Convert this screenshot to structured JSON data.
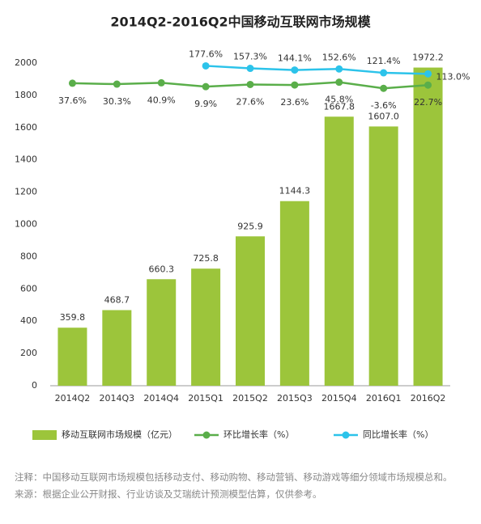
{
  "chart_data": {
    "type": "bar",
    "title": "2014Q2-2016Q2中国移动互联网市场规模",
    "categories": [
      "2014Q2",
      "2014Q3",
      "2014Q4",
      "2015Q1",
      "2015Q2",
      "2015Q3",
      "2015Q4",
      "2016Q1",
      "2016Q2"
    ],
    "ylim": [
      0,
      2000
    ],
    "yticks": [
      0,
      200,
      400,
      600,
      800,
      1000,
      1200,
      1400,
      1600,
      1800,
      2000
    ],
    "y2lim": [
      -2400,
      200
    ],
    "legend": "bottom",
    "series": [
      {
        "name": "移动互联网市场规模（亿元）",
        "type": "bar",
        "color": "#9cc53b",
        "values": [
          359.8,
          468.7,
          660.3,
          725.8,
          925.9,
          1144.3,
          1667.8,
          1607.0,
          1972.2
        ],
        "value_labels": [
          "359.8",
          "468.7",
          "660.3",
          "725.8",
          "925.9",
          "1144.3",
          "1667.8",
          "1607.0",
          "1972.2"
        ]
      },
      {
        "name": "环比增长率（%）",
        "type": "line",
        "axis": "y2",
        "color": "#5aae4a",
        "values": [
          37.6,
          30.3,
          40.9,
          9.9,
          27.6,
          23.6,
          45.8,
          -3.6,
          22.7
        ],
        "value_labels": [
          "37.6%",
          "30.3%",
          "40.9%",
          "9.9%",
          "27.6%",
          "23.6%",
          "45.8%",
          "-3.6%",
          "22.7%"
        ]
      },
      {
        "name": "同比增长率（%）",
        "type": "line",
        "axis": "y2",
        "color": "#2cc3ea",
        "values": [
          null,
          null,
          null,
          177.6,
          157.3,
          144.1,
          152.6,
          121.4,
          113.0
        ],
        "value_labels": [
          null,
          null,
          null,
          "177.6%",
          "157.3%",
          "144.1%",
          "152.6%",
          "121.4%",
          "113.0%"
        ]
      }
    ]
  },
  "notes": {
    "note": "注释：中国移动互联网市场规模包括移动支付、移动购物、移动营销、移动游戏等细分领域市场规模总和。",
    "source": "来源：根据企业公开财报、行业访谈及艾瑞统计预测模型估算，仅供参考。"
  }
}
